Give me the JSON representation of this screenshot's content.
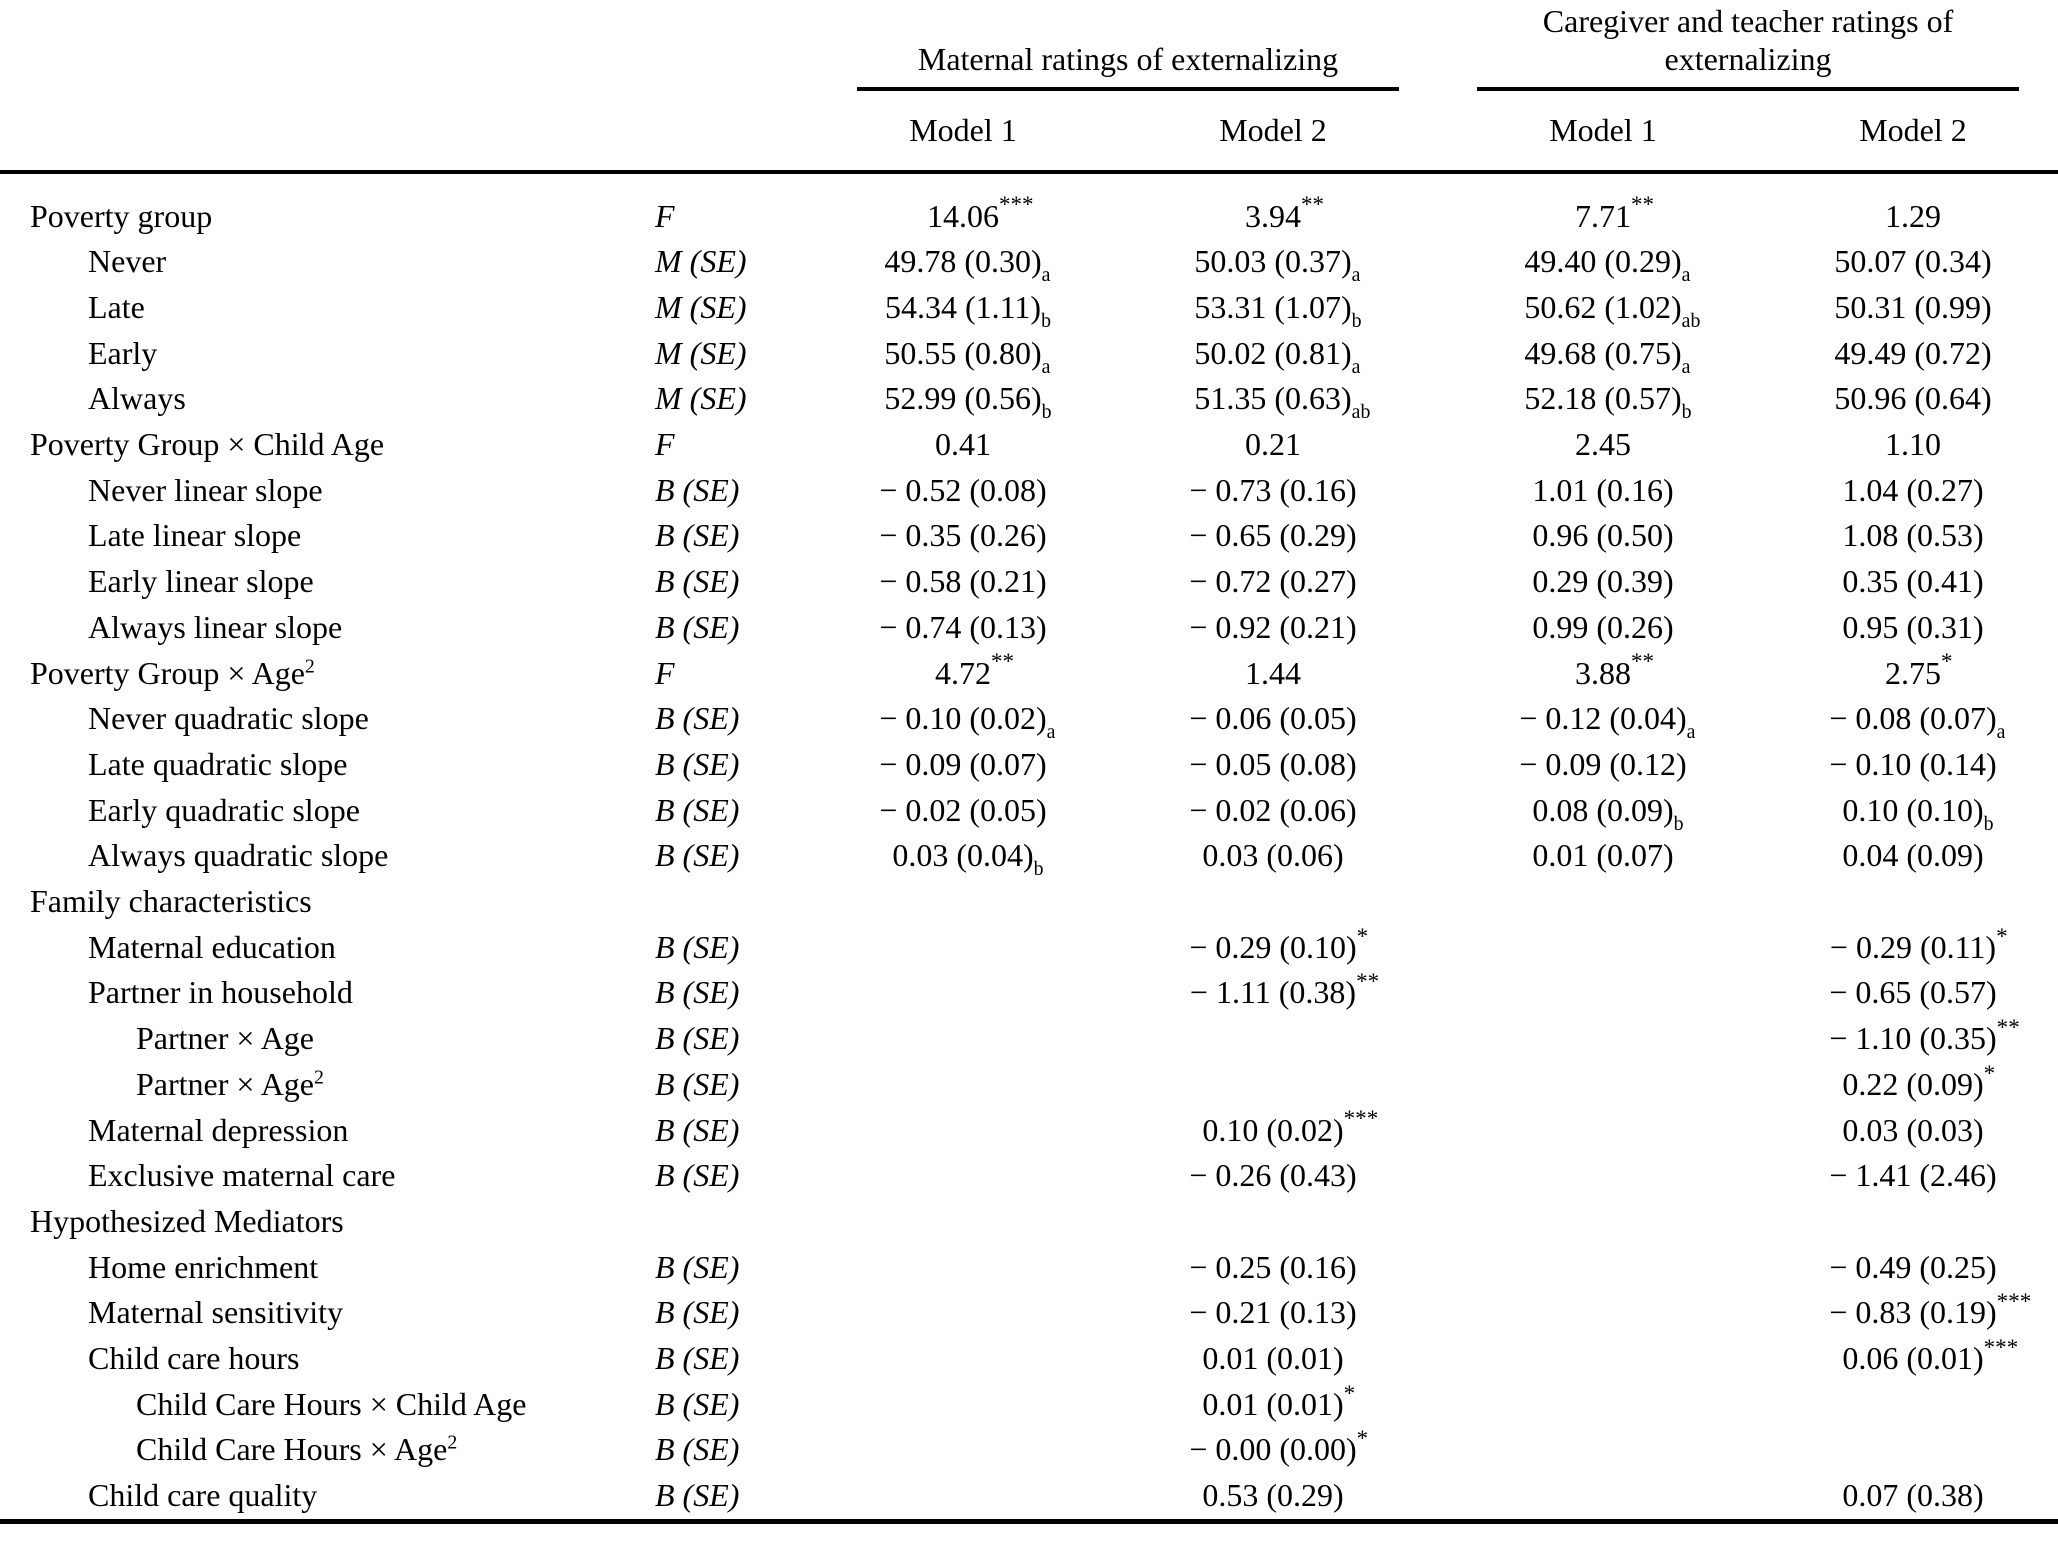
{
  "table": {
    "col_groups": [
      {
        "label": "Maternal ratings of externalizing",
        "models": [
          "Model 1",
          "Model 2"
        ]
      },
      {
        "label": "Caregiver and teacher ratings of externalizing",
        "models": [
          "Model 1",
          "Model 2"
        ]
      }
    ],
    "stat_types": [
      "F",
      "M (SE)",
      "B (SE)"
    ],
    "rows": [
      {
        "label": "Poverty group",
        "indent": 0,
        "stat": "F",
        "cells": [
          "14.06^{***}",
          "3.94^{**}",
          "7.71^{**}",
          "1.29"
        ]
      },
      {
        "label": "Never",
        "indent": 1,
        "stat": "M (SE)",
        "cells": [
          "49.78 (0.30)_{a}",
          "50.03 (0.37)_{a}",
          "49.40 (0.29)_{a}",
          "50.07 (0.34)"
        ]
      },
      {
        "label": "Late",
        "indent": 1,
        "stat": "M (SE)",
        "cells": [
          "54.34 (1.11)_{b}",
          "53.31 (1.07)_{b}",
          "50.62 (1.02)_{ab}",
          "50.31 (0.99)"
        ]
      },
      {
        "label": "Early",
        "indent": 1,
        "stat": "M (SE)",
        "cells": [
          "50.55 (0.80)_{a}",
          "50.02 (0.81)_{a}",
          "49.68 (0.75)_{a}",
          "49.49 (0.72)"
        ]
      },
      {
        "label": "Always",
        "indent": 1,
        "stat": "M (SE)",
        "cells": [
          "52.99 (0.56)_{b}",
          "51.35 (0.63)_{ab}",
          "52.18 (0.57)_{b}",
          "50.96 (0.64)"
        ]
      },
      {
        "label": "Poverty Group × Child Age",
        "indent": 0,
        "stat": "F",
        "cells": [
          "0.41",
          "0.21",
          "2.45",
          "1.10"
        ]
      },
      {
        "label": "Never linear slope",
        "indent": 1,
        "stat": "B (SE)",
        "cells": [
          "− 0.52 (0.08)",
          "− 0.73 (0.16)",
          "1.01 (0.16)",
          "1.04 (0.27)"
        ]
      },
      {
        "label": "Late linear slope",
        "indent": 1,
        "stat": "B (SE)",
        "cells": [
          "− 0.35 (0.26)",
          "− 0.65 (0.29)",
          "0.96 (0.50)",
          "1.08 (0.53)"
        ]
      },
      {
        "label": "Early linear slope",
        "indent": 1,
        "stat": "B (SE)",
        "cells": [
          "− 0.58 (0.21)",
          "− 0.72 (0.27)",
          "0.29 (0.39)",
          "0.35 (0.41)"
        ]
      },
      {
        "label": "Always linear slope",
        "indent": 1,
        "stat": "B (SE)",
        "cells": [
          "− 0.74 (0.13)",
          "− 0.92 (0.21)",
          "0.99 (0.26)",
          "0.95 (0.31)"
        ]
      },
      {
        "label": "Poverty Group × Age^{2}",
        "indent": 0,
        "stat": "F",
        "cells": [
          "4.72^{**}",
          "1.44",
          "3.88^{**}",
          "2.75^{*}"
        ]
      },
      {
        "label": "Never quadratic slope",
        "indent": 1,
        "stat": "B (SE)",
        "cells": [
          "− 0.10 (0.02)_{a}",
          "− 0.06 (0.05)",
          "− 0.12 (0.04)_{a}",
          "− 0.08 (0.07)_{a}"
        ]
      },
      {
        "label": "Late quadratic slope",
        "indent": 1,
        "stat": "B (SE)",
        "cells": [
          "− 0.09 (0.07)",
          "− 0.05 (0.08)",
          "− 0.09 (0.12)",
          "− 0.10 (0.14)"
        ]
      },
      {
        "label": "Early quadratic slope",
        "indent": 1,
        "stat": "B (SE)",
        "cells": [
          "− 0.02 (0.05)",
          "− 0.02 (0.06)",
          "0.08 (0.09)_{b}",
          "0.10 (0.10)_{b}"
        ]
      },
      {
        "label": "Always quadratic slope",
        "indent": 1,
        "stat": "B (SE)",
        "cells": [
          "0.03 (0.04)_{b}",
          "0.03 (0.06)",
          "0.01 (0.07)",
          "0.04 (0.09)"
        ]
      },
      {
        "label": "Family characteristics",
        "indent": 0,
        "stat": "",
        "cells": [
          "",
          "",
          "",
          ""
        ]
      },
      {
        "label": "Maternal education",
        "indent": 1,
        "stat": "B (SE)",
        "cells": [
          "",
          "− 0.29 (0.10)^{*}",
          "",
          "− 0.29 (0.11)^{*}"
        ]
      },
      {
        "label": "Partner in household",
        "indent": 1,
        "stat": "B (SE)",
        "cells": [
          "",
          "− 1.11 (0.38)^{**}",
          "",
          "− 0.65 (0.57)"
        ]
      },
      {
        "label": "Partner × Age",
        "indent": 2,
        "stat": "B (SE)",
        "cells": [
          "",
          "",
          "",
          "− 1.10 (0.35)^{**}"
        ]
      },
      {
        "label": "Partner × Age^{2}",
        "indent": 2,
        "stat": "B (SE)",
        "cells": [
          "",
          "",
          "",
          "0.22 (0.09)^{*}"
        ]
      },
      {
        "label": "Maternal depression",
        "indent": 1,
        "stat": "B (SE)",
        "cells": [
          "",
          "0.10 (0.02)^{***}",
          "",
          "0.03 (0.03)"
        ]
      },
      {
        "label": "Exclusive maternal care",
        "indent": 1,
        "stat": "B (SE)",
        "cells": [
          "",
          "− 0.26 (0.43)",
          "",
          "− 1.41 (2.46)"
        ]
      },
      {
        "label": "Hypothesized Mediators",
        "indent": 0,
        "stat": "",
        "cells": [
          "",
          "",
          "",
          ""
        ]
      },
      {
        "label": "Home enrichment",
        "indent": 1,
        "stat": "B (SE)",
        "cells": [
          "",
          "− 0.25 (0.16)",
          "",
          "− 0.49 (0.25)"
        ]
      },
      {
        "label": "Maternal sensitivity",
        "indent": 1,
        "stat": "B (SE)",
        "cells": [
          "",
          "− 0.21 (0.13)",
          "",
          "− 0.83 (0.19)^{***}"
        ]
      },
      {
        "label": "Child care hours",
        "indent": 1,
        "stat": "B (SE)",
        "cells": [
          "",
          "0.01 (0.01)",
          "",
          "0.06 (0.01)^{***}"
        ]
      },
      {
        "label": "Child Care Hours × Child Age",
        "indent": 2,
        "stat": "B (SE)",
        "cells": [
          "",
          "0.01 (0.01)^{*}",
          "",
          ""
        ]
      },
      {
        "label": "Child Care Hours × Age^{2}",
        "indent": 2,
        "stat": "B (SE)",
        "cells": [
          "",
          "− 0.00 (0.00)^{*}",
          "",
          ""
        ]
      },
      {
        "label": "Child care quality",
        "indent": 1,
        "stat": "B (SE)",
        "cells": [
          "",
          "0.53 (0.29)",
          "",
          "0.07 (0.38)"
        ]
      }
    ]
  }
}
